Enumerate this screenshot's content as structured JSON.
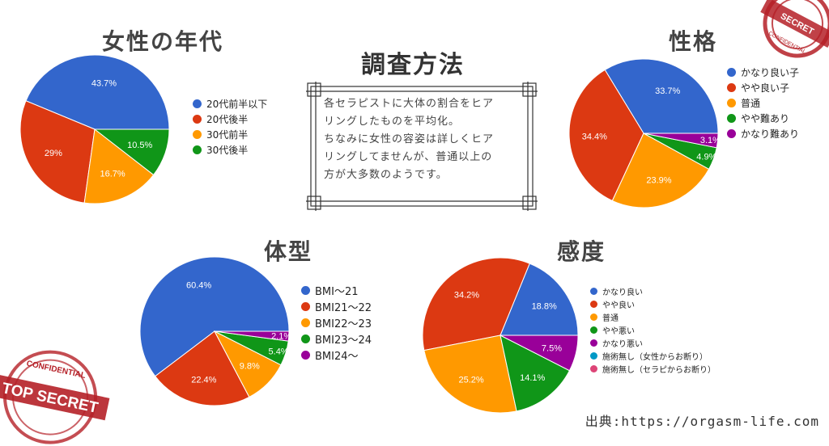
{
  "method": {
    "title": "調査方法",
    "text": "各セラピストに大体の割合をヒア\nリングしたものを平均化。\nちなみに女性の容姿は詳しくヒア\nリングしてませんが、普通以上の\n方が大多数のようです。"
  },
  "source": "出典:https://orgasm-life.com",
  "stamps": {
    "top_right": "CONFIDENTIAL",
    "bottom_left_top": "CONFIDENTIAL",
    "bottom_left_main": "TOP SECRET"
  },
  "colors": {
    "blue": "#3366cc",
    "red": "#dc3912",
    "orange": "#ff9900",
    "green": "#109618",
    "purple": "#990099",
    "teal": "#0099c6",
    "pink": "#dd4477"
  },
  "chart_data": [
    {
      "type": "pie",
      "title": "女性の年代",
      "slices": [
        {
          "label": "20代前半以下",
          "value": 43.7,
          "color": "#3366cc",
          "pct": "43.7%"
        },
        {
          "label": "20代後半",
          "value": 29,
          "color": "#dc3912",
          "pct": "29%"
        },
        {
          "label": "30代前半",
          "value": 16.7,
          "color": "#ff9900",
          "pct": "16.7%"
        },
        {
          "label": "30代後半",
          "value": 10.5,
          "color": "#109618",
          "pct": "10.5%"
        }
      ]
    },
    {
      "type": "pie",
      "title": "性格",
      "slices": [
        {
          "label": "かなり良い子",
          "value": 33.7,
          "color": "#3366cc",
          "pct": "33.7%"
        },
        {
          "label": "やや良い子",
          "value": 34.4,
          "color": "#dc3912",
          "pct": "34.4%"
        },
        {
          "label": "普通",
          "value": 23.9,
          "color": "#ff9900",
          "pct": "23.9%"
        },
        {
          "label": "やや難あり",
          "value": 4.9,
          "color": "#109618",
          "pct": "4.9%"
        },
        {
          "label": "かなり難あり",
          "value": 3.1,
          "color": "#990099",
          "pct": "3.1%"
        }
      ]
    },
    {
      "type": "pie",
      "title": "体型",
      "slices": [
        {
          "label": "BMI〜21",
          "value": 60.4,
          "color": "#3366cc",
          "pct": "60.4%"
        },
        {
          "label": "BMI21〜22",
          "value": 22.4,
          "color": "#dc3912",
          "pct": "22.4%"
        },
        {
          "label": "BMI22〜23",
          "value": 9.8,
          "color": "#ff9900",
          "pct": "9.8%"
        },
        {
          "label": "BMI23〜24",
          "value": 5.4,
          "color": "#109618",
          "pct": "5.4%"
        },
        {
          "label": "BMI24〜",
          "value": 2.1,
          "color": "#990099",
          "pct": "2.1%"
        }
      ]
    },
    {
      "type": "pie",
      "title": "感度",
      "slices": [
        {
          "label": "かなり良い",
          "value": 18.8,
          "color": "#3366cc",
          "pct": "18.8%"
        },
        {
          "label": "やや良い",
          "value": 34.2,
          "color": "#dc3912",
          "pct": "34.2%"
        },
        {
          "label": "普通",
          "value": 25.2,
          "color": "#ff9900",
          "pct": "25.2%"
        },
        {
          "label": "やや悪い",
          "value": 14.1,
          "color": "#109618",
          "pct": "14.1%"
        },
        {
          "label": "かなり悪い",
          "value": 7.5,
          "color": "#990099",
          "pct": "7.5%"
        },
        {
          "label": "施術無し（女性からお断り）",
          "value": 0,
          "color": "#0099c6",
          "pct": ""
        },
        {
          "label": "施術無し（セラピからお断り）",
          "value": 0,
          "color": "#dd4477",
          "pct": ""
        }
      ]
    }
  ]
}
